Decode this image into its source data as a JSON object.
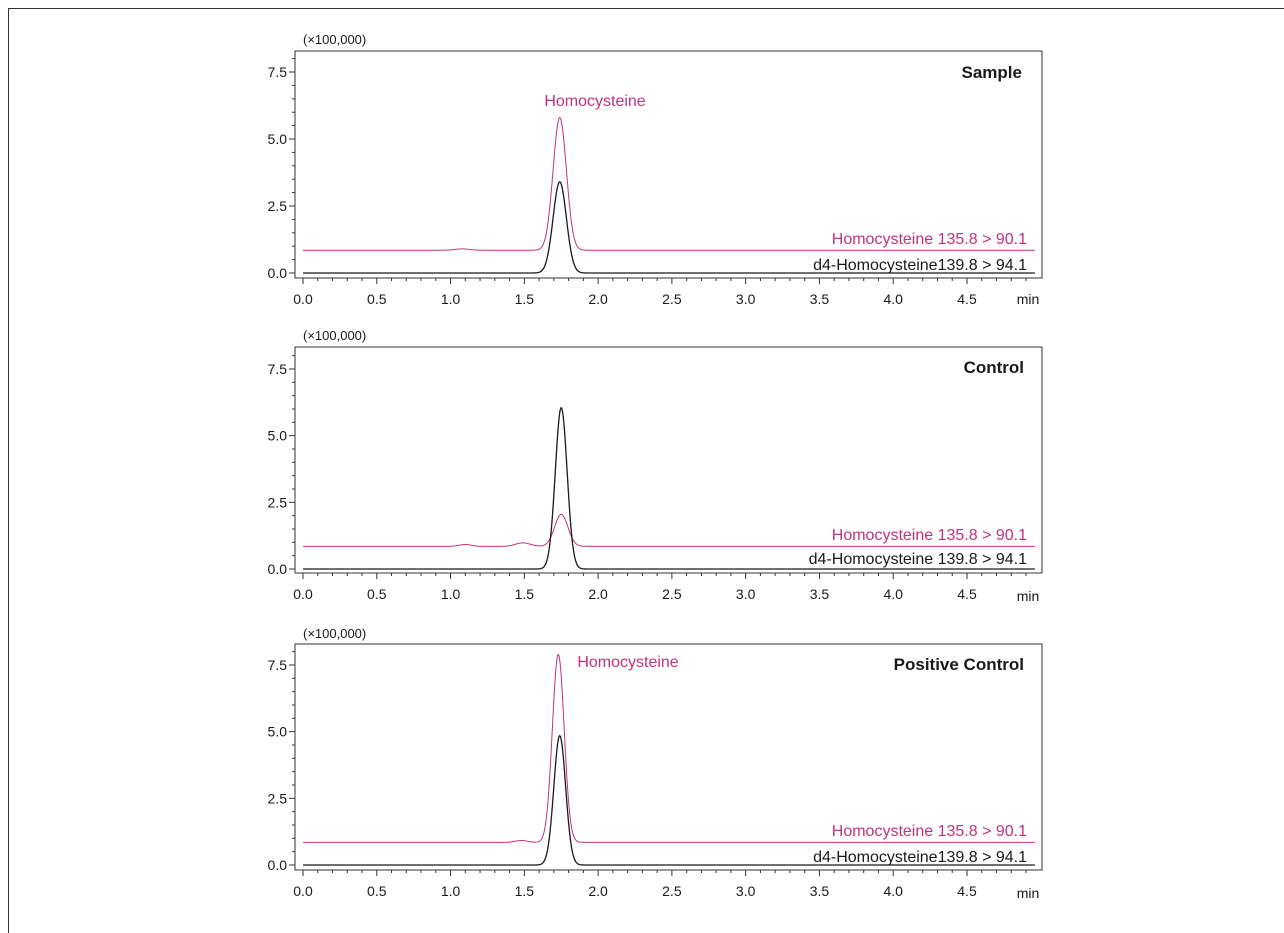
{
  "chart_data": [
    {
      "type": "line",
      "title": "Sample",
      "multiplier": "(×100,000)",
      "x_unit": "min",
      "xlim": [
        0.0,
        5.0
      ],
      "ylim": [
        -0.3,
        8.3
      ],
      "x_ticks": [
        "0.0",
        "0.5",
        "1.0",
        "1.5",
        "2.0",
        "2.5",
        "3.0",
        "3.5",
        "4.0",
        "4.5"
      ],
      "y_ticks": [
        "0.0",
        "2.5",
        "5.0",
        "7.5"
      ],
      "peak_label": "Homocysteine",
      "series": [
        {
          "name": "Homocysteine 135.8 > 90.1",
          "color": "#c2327f",
          "baseline": 0.85,
          "peaks": [
            {
              "rt": 1.74,
              "height": 5.8,
              "width": 0.045
            },
            {
              "rt": 1.08,
              "height": 0.9,
              "width": 0.05
            }
          ]
        },
        {
          "name": "d4-Homocysteine139.8 > 94.1",
          "color": "#1a1a1a",
          "baseline": 0.0,
          "peaks": [
            {
              "rt": 1.74,
              "height": 3.4,
              "width": 0.045
            }
          ]
        }
      ]
    },
    {
      "type": "line",
      "title": "Control",
      "multiplier": "(×100,000)",
      "x_unit": "min",
      "xlim": [
        0.0,
        5.0
      ],
      "ylim": [
        -0.3,
        8.3
      ],
      "x_ticks": [
        "0.0",
        "0.5",
        "1.0",
        "1.5",
        "2.0",
        "2.5",
        "3.0",
        "3.5",
        "4.0",
        "4.5"
      ],
      "y_ticks": [
        "0.0",
        "2.5",
        "5.0",
        "7.5"
      ],
      "peak_label": "",
      "series": [
        {
          "name": "Homocysteine 135.8 > 90.1",
          "color": "#c2327f",
          "baseline": 0.85,
          "peaks": [
            {
              "rt": 1.75,
              "height": 2.05,
              "width": 0.045
            },
            {
              "rt": 1.49,
              "height": 0.98,
              "width": 0.05
            },
            {
              "rt": 1.1,
              "height": 0.92,
              "width": 0.04
            }
          ]
        },
        {
          "name": "d4-Homocysteine 139.8 > 94.1",
          "color": "#1a1a1a",
          "baseline": 0.0,
          "peaks": [
            {
              "rt": 1.75,
              "height": 6.05,
              "width": 0.04
            }
          ]
        }
      ]
    },
    {
      "type": "line",
      "title": "Positive Control",
      "multiplier": "(×100,000)",
      "x_unit": "min",
      "xlim": [
        0.0,
        5.0
      ],
      "ylim": [
        -0.3,
        8.3
      ],
      "x_ticks": [
        "0.0",
        "0.5",
        "1.0",
        "1.5",
        "2.0",
        "2.5",
        "3.0",
        "3.5",
        "4.0",
        "4.5"
      ],
      "y_ticks": [
        "0.0",
        "2.5",
        "5.0",
        "7.5"
      ],
      "peak_label": "Homocysteine",
      "series": [
        {
          "name": "Homocysteine 135.8 > 90.1",
          "color": "#c2327f",
          "baseline": 0.85,
          "peaks": [
            {
              "rt": 1.73,
              "height": 7.9,
              "width": 0.04
            },
            {
              "rt": 1.48,
              "height": 0.92,
              "width": 0.04
            }
          ]
        },
        {
          "name": "d4-Homocysteine139.8 > 94.1",
          "color": "#1a1a1a",
          "baseline": 0.0,
          "peaks": [
            {
              "rt": 1.74,
              "height": 4.85,
              "width": 0.04
            }
          ]
        }
      ]
    }
  ]
}
